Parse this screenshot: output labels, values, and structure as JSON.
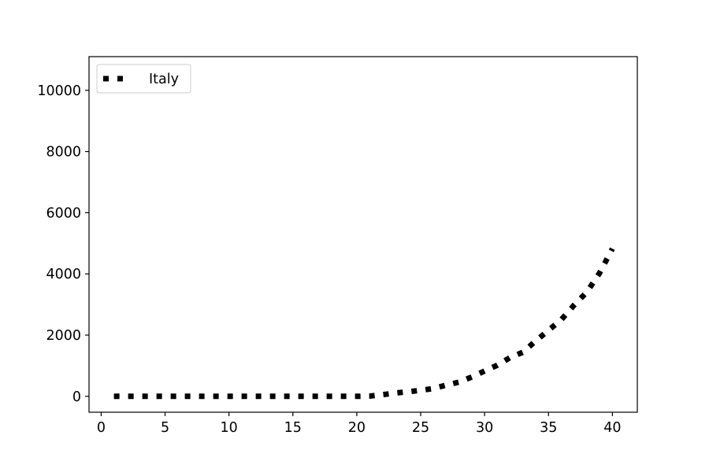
{
  "chart_data": {
    "type": "line",
    "title": "",
    "xlabel": "",
    "ylabel": "",
    "xlim": [
      -0.95,
      41.95
    ],
    "ylim": [
      -520,
      11100
    ],
    "xticks": [
      0,
      5,
      10,
      15,
      20,
      25,
      30,
      35,
      40
    ],
    "yticks": [
      0,
      2000,
      4000,
      6000,
      8000,
      10000
    ],
    "grid": false,
    "legend": {
      "placement": "top-left"
    },
    "series": [
      {
        "name": "Italy",
        "color": "#000000",
        "linestyle": "dotted",
        "x": [
          1,
          2,
          3,
          4,
          5,
          6,
          7,
          8,
          9,
          10,
          11,
          12,
          13,
          14,
          15,
          16,
          17,
          18,
          19,
          20,
          21,
          22,
          23,
          24,
          25,
          26,
          27,
          28,
          29,
          30,
          31,
          32,
          33,
          34,
          35,
          36,
          37,
          38,
          39,
          40
        ],
        "y": [
          0,
          0,
          0,
          0,
          0,
          0,
          0,
          0,
          0,
          0,
          0,
          0,
          0,
          0,
          0,
          0,
          0,
          0,
          0,
          0,
          7,
          52,
          107,
          148,
          197,
          253,
          366,
          463,
          631,
          827,
          1016,
          1266,
          1441,
          1809,
          2158,
          2503,
          2978,
          3405,
          4032,
          4825
        ]
      }
    ]
  }
}
